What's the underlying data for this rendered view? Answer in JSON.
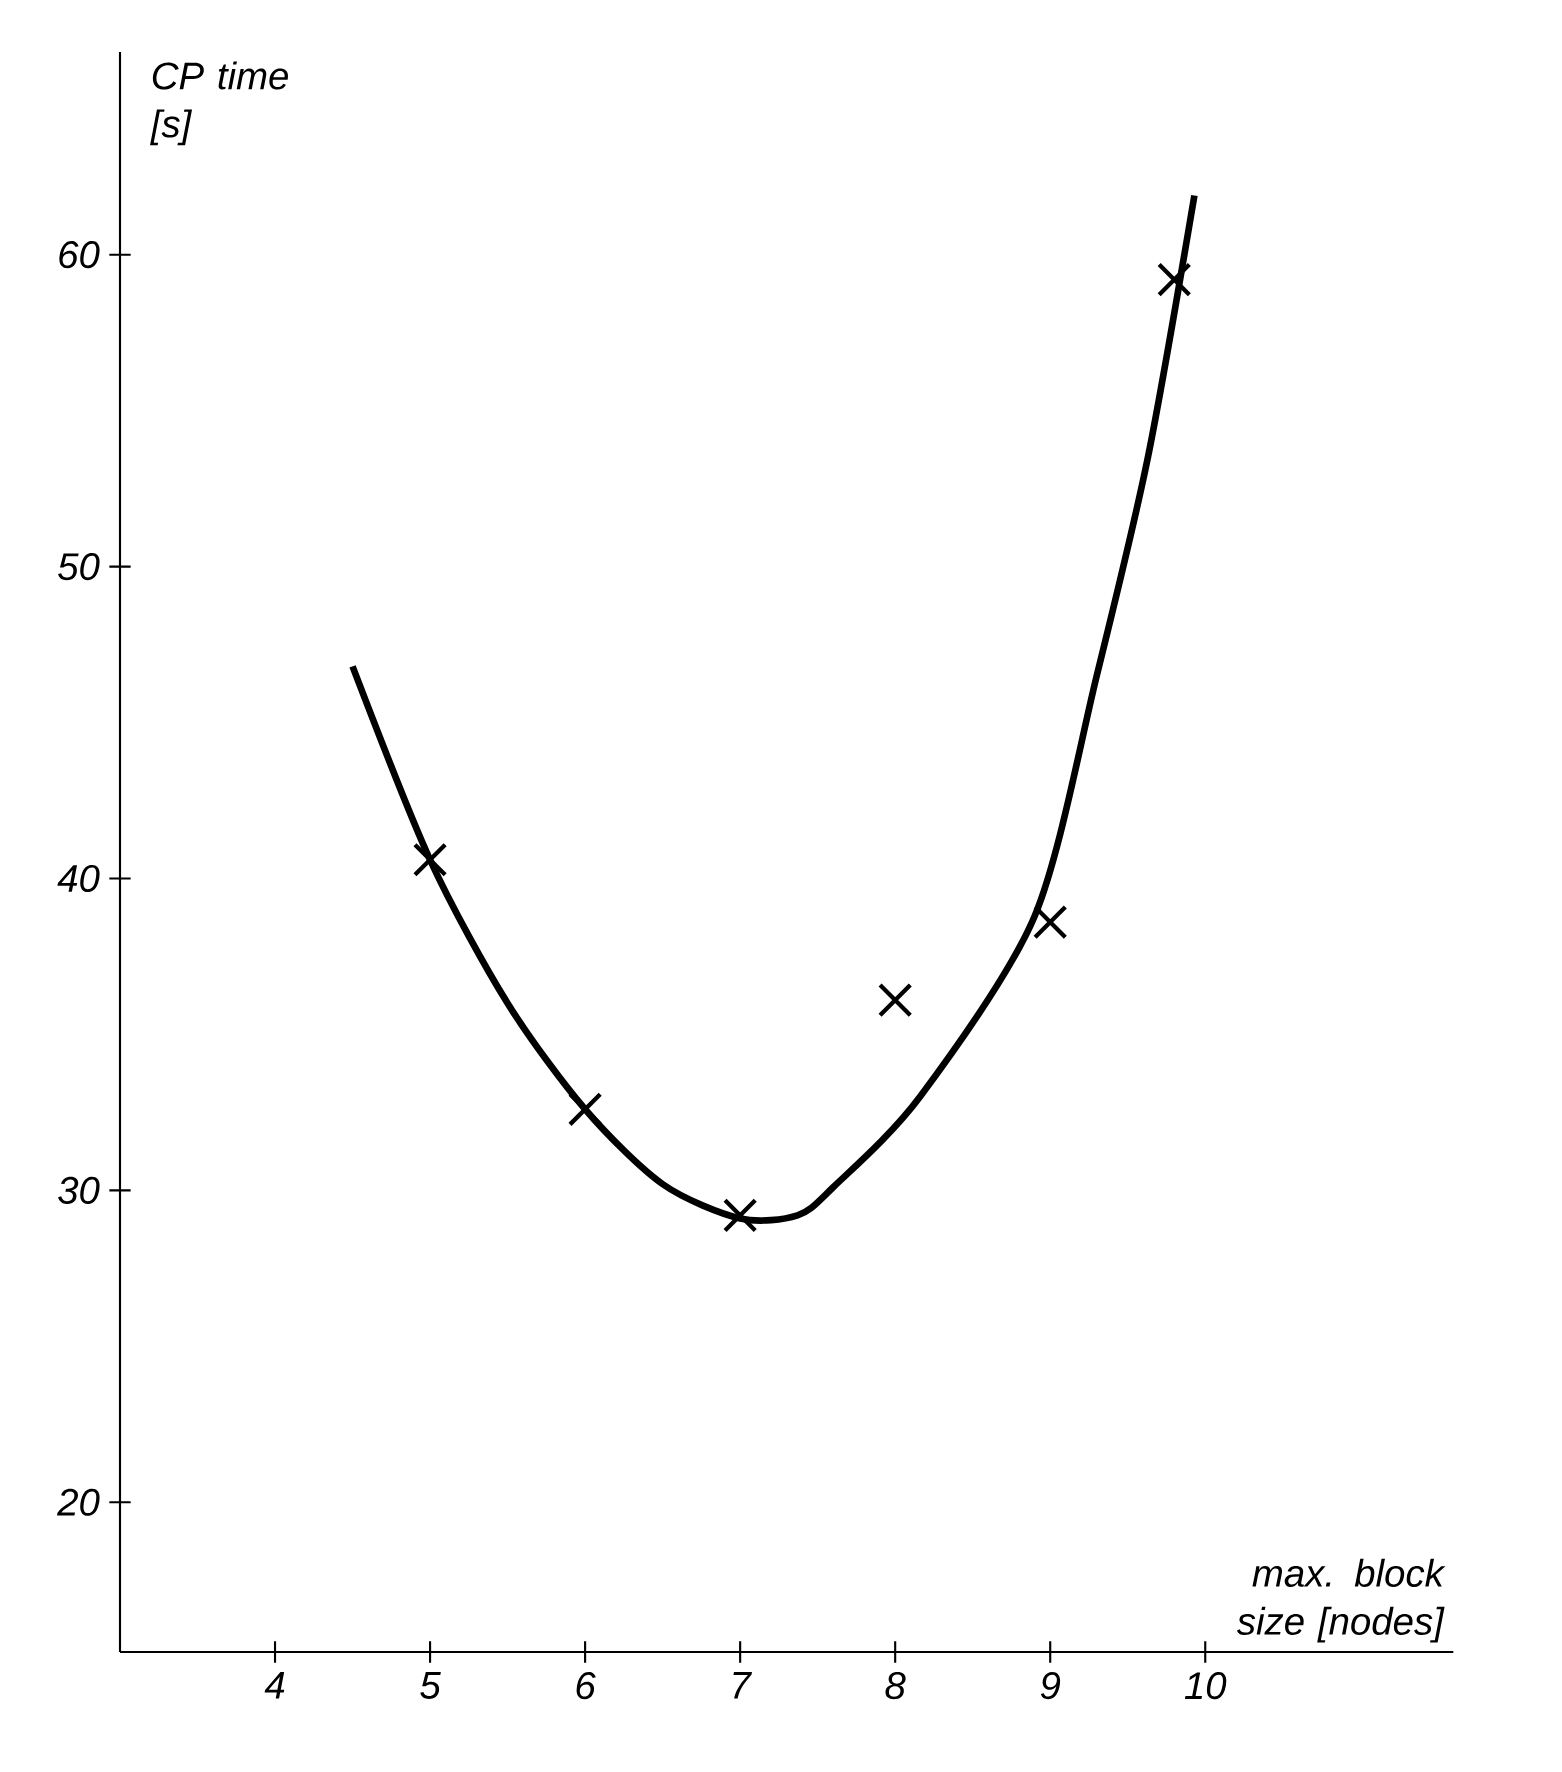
{
  "chart_data": {
    "type": "line",
    "xlabel": "max. block size [nodes]",
    "ylabel": "CP time [s]",
    "xlim": [
      3,
      11.6
    ],
    "ylim": [
      15.2,
      66.5
    ],
    "xticks": [
      4,
      5,
      6,
      7,
      8,
      9,
      10
    ],
    "yticks": [
      20,
      30,
      40,
      50,
      60
    ],
    "series": [
      {
        "type": "scatter",
        "marker": "cross",
        "color": "#000000",
        "x": [
          5,
          6,
          7,
          8,
          9,
          9.8
        ],
        "values": [
          40.6,
          32.6,
          29.2,
          36.1,
          38.6,
          59.2
        ]
      },
      {
        "marker": "none",
        "color": "#000000",
        "x": [
          4.5,
          5,
          5.5,
          6,
          6.5,
          7,
          7.37,
          7.6,
          8.16,
          8.9,
          9.3,
          9.63,
          9.93
        ],
        "values": [
          46.8,
          40.6,
          36,
          32.6,
          30.2,
          29.1,
          29.2,
          30.1,
          33.0,
          38.8,
          46.5,
          53.5,
          61.9
        ]
      }
    ]
  }
}
